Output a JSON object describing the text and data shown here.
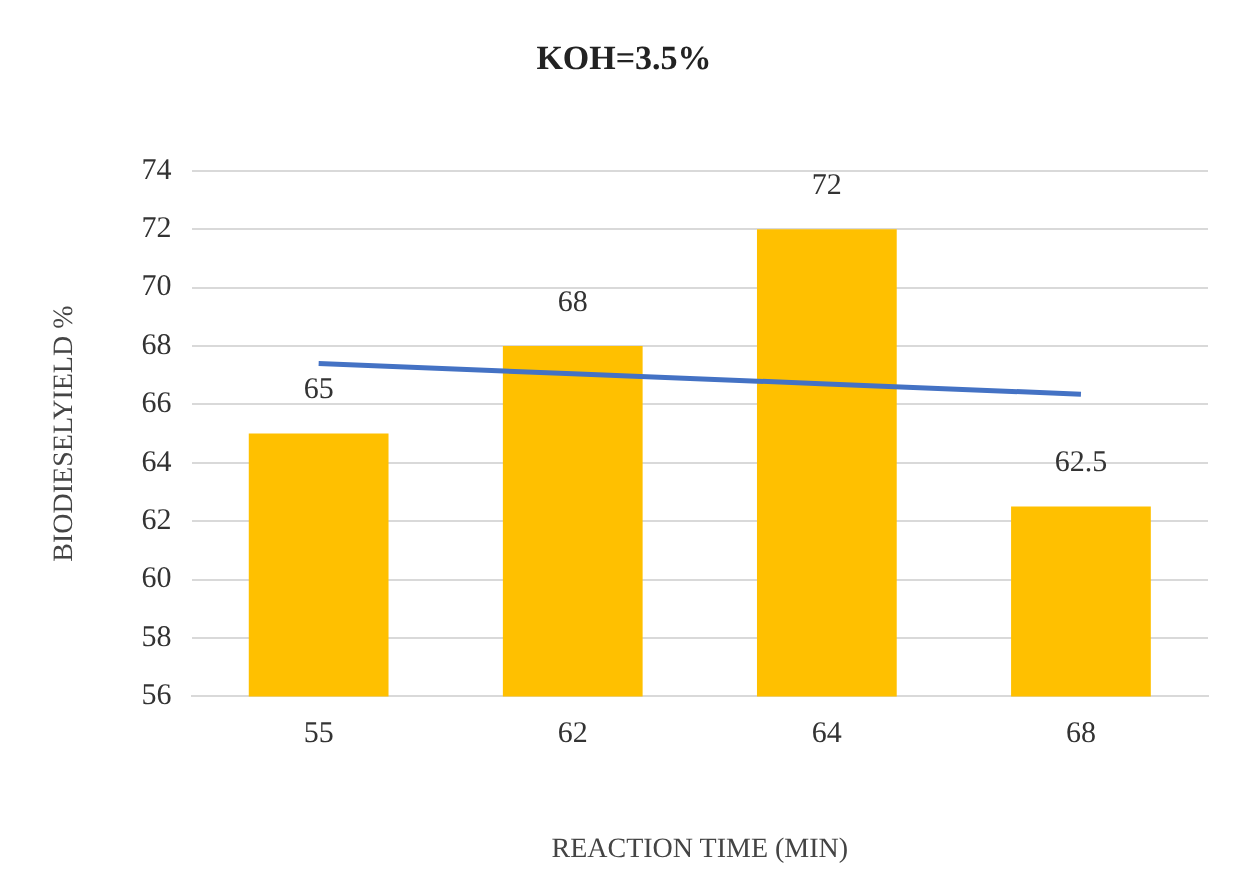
{
  "chart_data": {
    "type": "bar",
    "title": "KOH=3.5%",
    "xlabel": "REACTION TIME (MIN)",
    "ylabel": "BIODIESELYIELD %",
    "categories": [
      "55",
      "62",
      "64",
      "68"
    ],
    "series": [
      {
        "color": "#ffc000",
        "values": [
          65,
          68,
          72,
          62.5
        ],
        "value_labels": [
          "65",
          "68",
          "72",
          "62.5"
        ]
      },
      {
        "type": "line",
        "color": "#4472c4",
        "values": [
          67.4,
          67.05,
          66.7,
          66.35
        ],
        "marker": "none"
      }
    ],
    "ylim": [
      56,
      74
    ],
    "yticks": [
      56,
      58,
      60,
      62,
      64,
      66,
      68,
      70,
      72,
      74
    ],
    "grid": "y",
    "legend": false
  }
}
